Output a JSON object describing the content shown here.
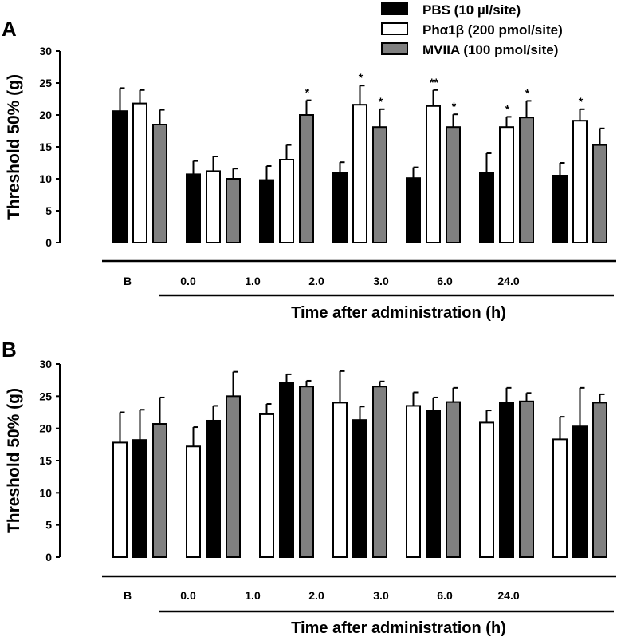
{
  "legend": [
    {
      "label": "PBS (10 µl/site)",
      "color": "#000000"
    },
    {
      "label": "Phα1β (200 pmol/site)",
      "color": "#ffffff"
    },
    {
      "label": "MVIIA  (100 pmol/site)",
      "color": "#808080"
    }
  ],
  "chart_data": [
    {
      "type": "bar",
      "panel": "A",
      "categories": [
        "B",
        "0.0",
        "1.0",
        "2.0",
        "3.0",
        "6.0",
        "24.0"
      ],
      "xlabel": "Time after administration (h)",
      "ylabel": "Threshold 50% (g)",
      "ylim": [
        0,
        30
      ],
      "yticks": [
        0,
        5,
        10,
        15,
        20,
        25,
        30
      ],
      "series": [
        {
          "name": "PBS (10 µl/site)",
          "color": "#000000",
          "values": [
            20.6,
            10.7,
            9.8,
            11.0,
            10.1,
            10.9,
            10.5
          ],
          "errors": [
            3.6,
            2.1,
            2.2,
            1.6,
            1.7,
            3.1,
            2.0
          ],
          "marks": [
            "",
            "",
            "",
            "",
            "",
            "",
            ""
          ]
        },
        {
          "name": "Phα1β (200 pmol/site)",
          "color": "#ffffff",
          "values": [
            21.8,
            11.2,
            13.0,
            21.6,
            21.4,
            18.1,
            19.1
          ],
          "errors": [
            2.1,
            2.3,
            2.3,
            3.0,
            2.5,
            1.6,
            1.8
          ],
          "marks": [
            "",
            "",
            "",
            "*",
            "**",
            "*",
            "*"
          ]
        },
        {
          "name": "MVIIA  (100 pmol/site)",
          "color": "#808080",
          "values": [
            18.5,
            10.0,
            20.0,
            18.1,
            18.1,
            19.6,
            15.3
          ],
          "errors": [
            2.3,
            1.6,
            2.3,
            2.8,
            2.0,
            2.6,
            2.6
          ],
          "marks": [
            "",
            "",
            "*",
            "*",
            "*",
            "*",
            ""
          ]
        }
      ]
    },
    {
      "type": "bar",
      "panel": "B",
      "categories": [
        "B",
        "0.0",
        "1.0",
        "2.0",
        "3.0",
        "6.0",
        "24.0"
      ],
      "xlabel": "Time after administration (h)",
      "ylabel": "Threshold 50% (g)",
      "ylim": [
        0,
        30
      ],
      "yticks": [
        0,
        5,
        10,
        15,
        20,
        25,
        30
      ],
      "series": [
        {
          "name": "white",
          "color": "#ffffff",
          "values": [
            17.8,
            17.2,
            22.2,
            24.0,
            23.5,
            20.9,
            18.3
          ],
          "errors": [
            4.7,
            3.0,
            1.6,
            4.9,
            2.1,
            1.9,
            3.5
          ],
          "marks": [
            "",
            "",
            "",
            "",
            "",
            "",
            ""
          ]
        },
        {
          "name": "black",
          "color": "#000000",
          "values": [
            18.2,
            21.2,
            27.1,
            21.3,
            22.7,
            24.0,
            20.3
          ],
          "errors": [
            4.7,
            2.3,
            1.3,
            2.1,
            2.1,
            2.3,
            6.0
          ],
          "marks": [
            "",
            "",
            "",
            "",
            "",
            "",
            ""
          ]
        },
        {
          "name": "gray",
          "color": "#808080",
          "values": [
            20.7,
            25.0,
            26.5,
            26.5,
            24.1,
            24.2,
            24.0
          ],
          "errors": [
            4.1,
            3.8,
            0.9,
            0.8,
            2.2,
            1.3,
            1.3
          ],
          "marks": [
            "",
            "",
            "",
            "",
            "",
            "",
            ""
          ]
        }
      ]
    }
  ]
}
